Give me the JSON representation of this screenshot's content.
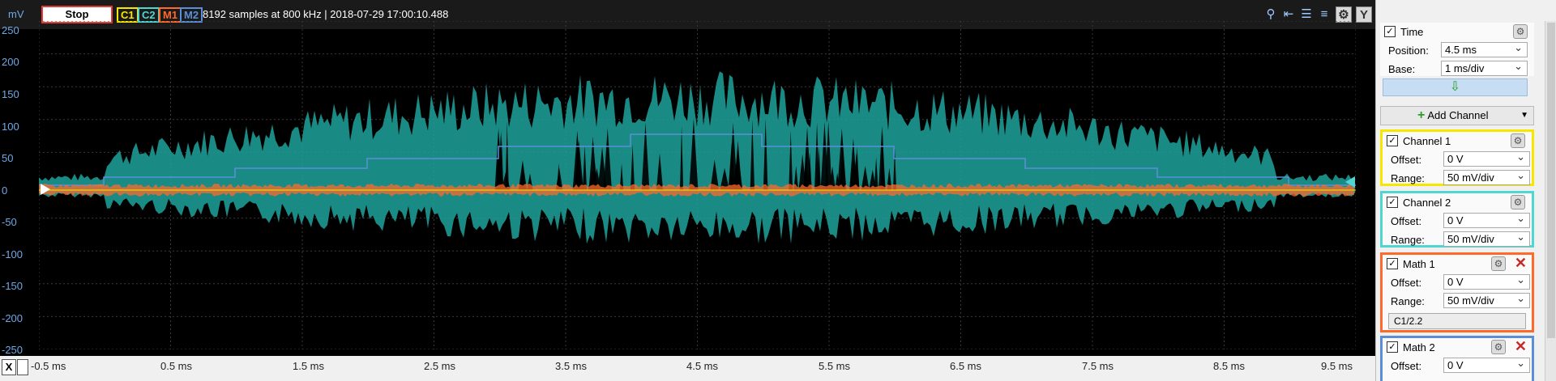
{
  "toolbar": {
    "unit": "mV",
    "stop_label": "Stop",
    "badges": [
      {
        "label": "C1",
        "color": "#f7e600"
      },
      {
        "label": "C2",
        "color": "#4fd6d0"
      },
      {
        "label": "M1",
        "color": "#ff6a2b"
      },
      {
        "label": "M2",
        "color": "#5a8fd8"
      }
    ],
    "info": "8192 samples at 800 kHz | 2018-07-29 17:00:10.488",
    "y_button": "Y"
  },
  "y_axis": {
    "ticks": [
      "250",
      "200",
      "150",
      "100",
      "50",
      "0",
      "-50",
      "-100",
      "-150",
      "-200",
      "-250"
    ]
  },
  "x_axis": {
    "x_button": "X",
    "ticks": [
      "-0.5 ms",
      "0.5 ms",
      "1.5 ms",
      "2.5 ms",
      "3.5 ms",
      "4.5 ms",
      "5.5 ms",
      "6.5 ms",
      "7.5 ms",
      "8.5 ms",
      "9.5 ms"
    ]
  },
  "colors": {
    "channel1": "#f7e600",
    "channel2": "#1fa39b",
    "math1": "#ff6a2b",
    "math2": "#5a8fd8",
    "grid": "#3a3a3a"
  },
  "panel": {
    "time": {
      "title": "Time",
      "position_label": "Position:",
      "position_value": "4.5 ms",
      "base_label": "Base:",
      "base_value": "1 ms/div"
    },
    "apply_icon": "down-arrow-icon",
    "add_channel_label": "Add Channel",
    "channels": [
      {
        "title": "Channel 1",
        "offset_label": "Offset:",
        "offset_value": "0 V",
        "range_label": "Range:",
        "range_value": "50 mV/div",
        "border": "#f7e600"
      },
      {
        "title": "Channel 2",
        "offset_label": "Offset:",
        "offset_value": "0 V",
        "range_label": "Range:",
        "range_value": "50 mV/div",
        "border": "#4fd6d0"
      }
    ],
    "math1": {
      "title": "Math 1",
      "offset_label": "Offset:",
      "offset_value": "0 V",
      "range_label": "Range:",
      "range_value": "50 mV/div",
      "formula": "C1/2.2",
      "border": "#ff6a2b"
    },
    "math2": {
      "title": "Math 2",
      "offset_label": "Offset:",
      "offset_value": "0 V",
      "border": "#5a8fd8"
    }
  }
}
